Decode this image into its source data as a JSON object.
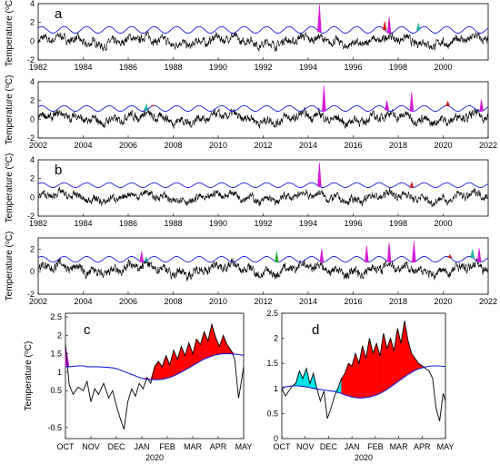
{
  "figure": {
    "y_label_text": "Temperature (",
    "y_label_sup": "o",
    "y_label_end": "C)"
  },
  "chart_data": [
    {
      "type": "line",
      "panel_label": "a",
      "x_range": [
        1982,
        2002
      ],
      "x_ticks": [
        "1982",
        "1984",
        "1986",
        "1988",
        "1990",
        "1992",
        "1994",
        "1996",
        "1998",
        "2000"
      ],
      "y_range": [
        -2,
        4
      ],
      "y_ticks": [
        "-2",
        "0",
        "2",
        "4"
      ],
      "threshold_level": 1.2,
      "threshold_amp": 0.35,
      "anomaly_mean": 0.0,
      "anomaly_amp": 0.75,
      "spikes": [
        {
          "x": 1994.5,
          "y": 3.9,
          "color": "#d51bd5"
        },
        {
          "x": 1997.6,
          "y": 2.6,
          "color": "#d51bd5"
        },
        {
          "x": 1997.4,
          "y": 2.1,
          "color": "#d61f1f"
        },
        {
          "x": 1998.9,
          "y": 1.9,
          "color": "#22b8a4"
        }
      ],
      "line_color": "#000000",
      "threshold_color": "#1f1fd6"
    },
    {
      "type": "line",
      "panel_label": "",
      "x_range": [
        2002,
        2022
      ],
      "x_ticks": [
        "2002",
        "2004",
        "2006",
        "2008",
        "2010",
        "2012",
        "2014",
        "2016",
        "2018",
        "2020",
        "2022"
      ],
      "y_range": [
        -2,
        4
      ],
      "y_ticks": [
        "-2",
        "0",
        "2",
        "4"
      ],
      "threshold_level": 1.15,
      "threshold_amp": 0.3,
      "anomaly_mean": 0.1,
      "anomaly_amp": 0.8,
      "spikes": [
        {
          "x": 2006.8,
          "y": 1.6,
          "color": "#22b8a4"
        },
        {
          "x": 2007.1,
          "y": 1.5,
          "color": "#d61f1f"
        },
        {
          "x": 2014.7,
          "y": 3.6,
          "color": "#d51bd5"
        },
        {
          "x": 2017.5,
          "y": 2.0,
          "color": "#d51bd5"
        },
        {
          "x": 2018.6,
          "y": 2.9,
          "color": "#d51bd5"
        },
        {
          "x": 2020.2,
          "y": 1.9,
          "color": "#d61f1f"
        },
        {
          "x": 2021.7,
          "y": 2.1,
          "color": "#d51bd5"
        }
      ],
      "line_color": "#000000",
      "threshold_color": "#1f1fd6"
    },
    {
      "type": "line",
      "panel_label": "b",
      "x_range": [
        1982,
        2002
      ],
      "x_ticks": [
        "1982",
        "1984",
        "1986",
        "1988",
        "1990",
        "1992",
        "1994",
        "1996",
        "1998",
        "2000"
      ],
      "y_range": [
        -2,
        4
      ],
      "y_ticks": [
        "-2",
        "0",
        "2",
        "4"
      ],
      "threshold_level": 1.3,
      "threshold_amp": 0.25,
      "anomaly_mean": 0.0,
      "anomaly_amp": 0.7,
      "spikes": [
        {
          "x": 1994.5,
          "y": 3.7,
          "color": "#d51bd5"
        },
        {
          "x": 1998.6,
          "y": 1.6,
          "color": "#d61f1f"
        }
      ],
      "line_color": "#000000",
      "threshold_color": "#1f1fd6"
    },
    {
      "type": "line",
      "panel_label": "",
      "x_range": [
        2002,
        2022
      ],
      "x_ticks": [
        "2002",
        "2004",
        "2006",
        "2008",
        "2010",
        "2012",
        "2014",
        "2016",
        "2018",
        "2020",
        "2022"
      ],
      "y_range": [
        -2,
        3
      ],
      "y_ticks": [
        "-2",
        "0",
        "2"
      ],
      "threshold_level": 1.1,
      "threshold_amp": 0.25,
      "anomaly_mean": 0.2,
      "anomaly_amp": 0.7,
      "spikes": [
        {
          "x": 2006.6,
          "y": 1.8,
          "color": "#d51bd5"
        },
        {
          "x": 2006.8,
          "y": 1.3,
          "color": "#22b8a4"
        },
        {
          "x": 2012.6,
          "y": 1.8,
          "color": "#2fae3c"
        },
        {
          "x": 2014.6,
          "y": 2.0,
          "color": "#d51bd5"
        },
        {
          "x": 2016.6,
          "y": 2.3,
          "color": "#d51bd5"
        },
        {
          "x": 2017.6,
          "y": 2.6,
          "color": "#d51bd5"
        },
        {
          "x": 2018.7,
          "y": 2.7,
          "color": "#d51bd5"
        },
        {
          "x": 2020.3,
          "y": 1.5,
          "color": "#d61f1f"
        },
        {
          "x": 2021.3,
          "y": 2.0,
          "color": "#22b8a4"
        },
        {
          "x": 2021.6,
          "y": 2.1,
          "color": "#d51bd5"
        }
      ],
      "line_color": "#000000",
      "threshold_color": "#1f1fd6"
    },
    {
      "type": "area",
      "panel_label": "c",
      "x_ticks": [
        "OCT",
        "NOV",
        "DEC",
        "JAN",
        "FEB",
        "MAR",
        "APR",
        "MAY"
      ],
      "x_label": "2020",
      "y_range": [
        -0.8,
        2.6
      ],
      "y_ticks": [
        "-0.5",
        "0.5",
        "1",
        "1.5",
        "2",
        "2.5"
      ],
      "x": [
        0,
        0.15,
        0.3,
        0.5,
        0.7,
        0.85,
        1.0,
        1.15,
        1.3,
        1.5,
        1.7,
        1.85,
        2.0,
        2.15,
        2.3,
        2.45,
        2.6,
        2.75,
        2.9,
        3.05,
        3.2,
        3.35,
        3.5,
        3.65,
        3.8,
        3.95,
        4.1,
        4.25,
        4.4,
        4.55,
        4.7,
        4.85,
        5.0,
        5.15,
        5.3,
        5.45,
        5.6,
        5.75,
        5.9,
        6.05,
        6.2,
        6.35,
        6.5,
        6.65,
        6.8,
        6.9,
        7.0
      ],
      "temperature": [
        1.75,
        0.65,
        0.4,
        0.6,
        0.5,
        0.75,
        0.2,
        0.55,
        0.4,
        0.7,
        0.3,
        0.5,
        0.1,
        -0.25,
        -0.55,
        0.2,
        0.55,
        0.35,
        0.7,
        0.55,
        0.85,
        0.7,
        1.15,
        1.3,
        1.15,
        1.45,
        1.2,
        1.6,
        1.35,
        1.7,
        1.45,
        1.8,
        1.5,
        1.9,
        1.75,
        2.1,
        1.85,
        2.3,
        1.95,
        1.7,
        2.0,
        1.75,
        1.6,
        1.35,
        0.3,
        0.7,
        1.15
      ],
      "threshold": [
        1.15,
        1.15,
        1.16,
        1.17,
        1.17,
        1.15,
        1.15,
        1.15,
        1.15,
        1.14,
        1.13,
        1.12,
        1.1,
        1.06,
        1.02,
        0.98,
        0.94,
        0.9,
        0.86,
        0.83,
        0.81,
        0.8,
        0.8,
        0.8,
        0.81,
        0.83,
        0.86,
        0.9,
        0.95,
        1.0,
        1.06,
        1.12,
        1.18,
        1.24,
        1.3,
        1.36,
        1.4,
        1.44,
        1.47,
        1.49,
        1.5,
        1.5,
        1.5,
        1.49,
        1.48,
        1.47,
        1.46
      ],
      "fill_colors": [
        "#ff0000",
        "#00e5e5",
        "#e01be0"
      ],
      "line_color": "#000000",
      "threshold_color": "#1f1fd6"
    },
    {
      "type": "area",
      "panel_label": "d",
      "x_ticks": [
        "OCT",
        "NOV",
        "DEC",
        "JAN",
        "FEB",
        "MAR",
        "APR",
        "MAY"
      ],
      "x_label": "2020",
      "y_range": [
        0,
        2.5
      ],
      "y_ticks": [
        "0",
        "0.5",
        "1",
        "1.5",
        "2",
        "2.5"
      ],
      "x": [
        0,
        0.15,
        0.3,
        0.45,
        0.6,
        0.75,
        0.9,
        1.05,
        1.2,
        1.35,
        1.5,
        1.65,
        1.8,
        1.95,
        2.1,
        2.25,
        2.4,
        2.55,
        2.7,
        2.85,
        3.0,
        3.15,
        3.3,
        3.45,
        3.6,
        3.75,
        3.9,
        4.05,
        4.2,
        4.35,
        4.5,
        4.65,
        4.8,
        4.95,
        5.1,
        5.25,
        5.4,
        5.55,
        5.7,
        5.85,
        6.0,
        6.15,
        6.3,
        6.45,
        6.6,
        6.75,
        6.9,
        7.0
      ],
      "temperature": [
        1.0,
        0.85,
        0.95,
        1.05,
        1.1,
        1.35,
        1.2,
        1.4,
        1.1,
        1.3,
        1.0,
        0.75,
        0.95,
        0.4,
        0.6,
        0.85,
        1.0,
        1.2,
        1.3,
        1.5,
        1.45,
        1.7,
        1.5,
        1.85,
        1.6,
        2.0,
        1.7,
        1.9,
        1.65,
        2.1,
        1.8,
        2.0,
        1.75,
        2.2,
        1.9,
        2.35,
        1.95,
        1.7,
        1.6,
        1.5,
        1.45,
        1.4,
        1.35,
        1.2,
        0.6,
        0.35,
        0.9,
        0.75
      ],
      "threshold": [
        1.02,
        1.03,
        1.04,
        1.05,
        1.05,
        1.05,
        1.04,
        1.03,
        1.02,
        1.0,
        0.99,
        0.98,
        0.97,
        0.96,
        0.95,
        0.94,
        0.92,
        0.9,
        0.87,
        0.85,
        0.83,
        0.82,
        0.81,
        0.81,
        0.82,
        0.83,
        0.85,
        0.87,
        0.9,
        0.94,
        0.98,
        1.03,
        1.08,
        1.13,
        1.18,
        1.23,
        1.28,
        1.32,
        1.36,
        1.39,
        1.41,
        1.43,
        1.44,
        1.45,
        1.45,
        1.45,
        1.44,
        1.44
      ],
      "fill_colors": [
        "#ff0000",
        "#00e5e5",
        "#e01be0"
      ],
      "line_color": "#000000",
      "threshold_color": "#1f1fd6"
    }
  ]
}
